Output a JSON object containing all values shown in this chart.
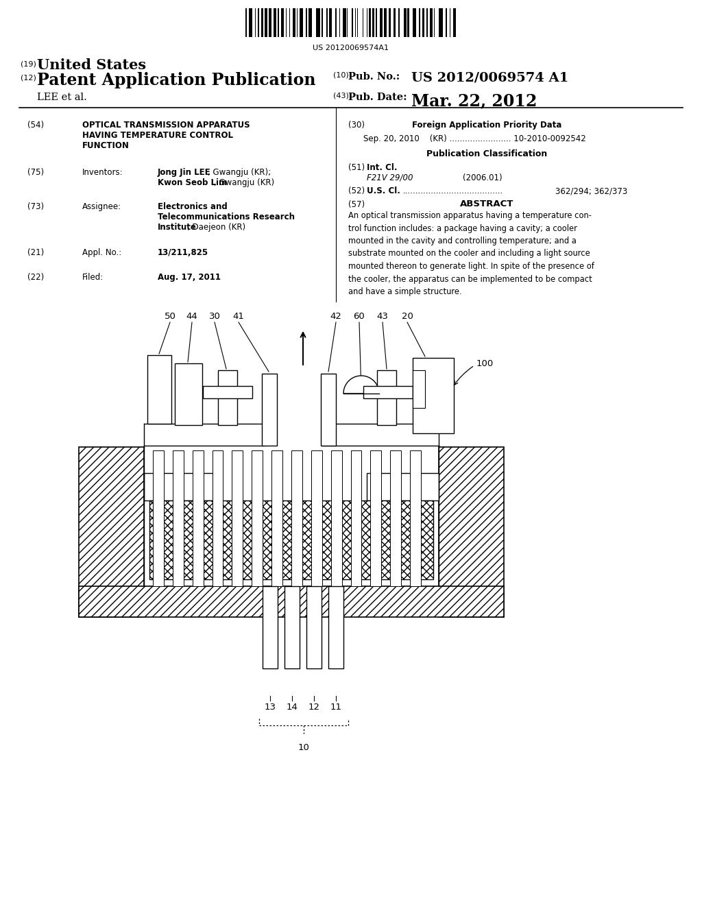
{
  "bg": "#ffffff",
  "barcode_number": "US 20120069574A1",
  "h19": "(19)",
  "h19_txt": "United States",
  "h12": "(12)",
  "h12_txt": "Patent Application Publication",
  "hlee": "LEE et al.",
  "h10": "(10)",
  "h10_pubno_lbl": "Pub. No.:",
  "h10_pubno_val": "US 2012/0069574 A1",
  "h43": "(43)",
  "h43_date_lbl": "Pub. Date:",
  "h43_date_val": "Mar. 22, 2012",
  "s54_lbl": "(54)",
  "s54_l1": "OPTICAL TRANSMISSION APPARATUS",
  "s54_l2": "HAVING TEMPERATURE CONTROL",
  "s54_l3": "FUNCTION",
  "s75_lbl": "(75)",
  "s75_key": "Inventors:",
  "s75_v1a": "Jong Jin LEE",
  "s75_v1b": ", Gwangju (KR);",
  "s75_v2a": "Kwon Seob Lim",
  "s75_v2b": ", Gwangju (KR)",
  "s73_lbl": "(73)",
  "s73_key": "Assignee:",
  "s73_v1": "Electronics and",
  "s73_v2": "Telecommunications Research",
  "s73_v3a": "Institute",
  "s73_v3b": ", Daejeon (KR)",
  "s21_lbl": "(21)",
  "s21_key": "Appl. No.:",
  "s21_val": "13/211,825",
  "s22_lbl": "(22)",
  "s22_key": "Filed:",
  "s22_val": "Aug. 17, 2011",
  "s30_lbl": "(30)",
  "s30_title": "Foreign Application Priority Data",
  "s30_val": "Sep. 20, 2010    (KR) ........................ 10-2010-0092542",
  "pub_class": "Publication Classification",
  "s51_lbl": "(51)",
  "s51_key": "Int. Cl.",
  "s51_italic": "F21V 29/00",
  "s51_date": "(2006.01)",
  "s52_lbl": "(52)",
  "s52_key": "U.S. Cl.",
  "s52_dots": ".......................................",
  "s52_val": "362/294; 362/373",
  "s57_lbl": "(57)",
  "s57_title": "ABSTRACT",
  "abstract": "An optical transmission apparatus having a temperature con-\ntrol function includes: a package having a cavity; a cooler\nmounted in the cavity and controlling temperature; and a\nsubstrate mounted on the cooler and including a light source\nmounted thereon to generate light. In spite of the presence of\nthe cooler, the apparatus can be implemented to be compact\nand have a simple structure."
}
